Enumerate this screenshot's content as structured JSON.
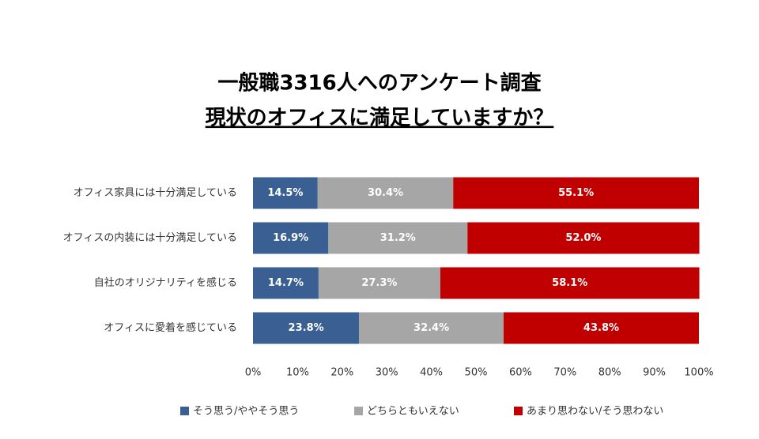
{
  "chart_data": {
    "type": "stacked-bar-horizontal",
    "title": "一般職3316人へのアンケート調査",
    "subtitle": "現状のオフィスに満足していますか？",
    "categories": [
      "オフィス家具には十分満足している",
      "オフィスの内装には十分満足している",
      "自社のオリジナリティを感じる",
      "オフィスに愛着を感じている"
    ],
    "series": [
      {
        "name": "そう思う/ややそう思う",
        "color": "#3a5f93",
        "values": [
          14.5,
          16.9,
          14.7,
          23.8
        ],
        "value_labels": [
          "14.5%",
          "16.9%",
          "14.7%",
          "23.8%"
        ]
      },
      {
        "name": "どちらともいえない",
        "color": "#a6a6a6",
        "values": [
          30.4,
          31.2,
          27.3,
          32.4
        ],
        "value_labels": [
          "30.4%",
          "31.2%",
          "27.3%",
          "32.4%"
        ]
      },
      {
        "name": "あまり思わない/そう思わない",
        "color": "#c00000",
        "values": [
          55.1,
          52.0,
          58.1,
          43.8
        ],
        "value_labels": [
          "55.1%",
          "52.0%",
          "58.1%",
          "43.8%"
        ]
      }
    ],
    "xlim": [
      0,
      100
    ],
    "xticks": [
      {
        "value": 0,
        "label": "0%"
      },
      {
        "value": 10,
        "label": "10%"
      },
      {
        "value": 20,
        "label": "20%"
      },
      {
        "value": 30,
        "label": "30%"
      },
      {
        "value": 40,
        "label": "40%"
      },
      {
        "value": 50,
        "label": "50%"
      },
      {
        "value": 60,
        "label": "60%"
      },
      {
        "value": 70,
        "label": "70%"
      },
      {
        "value": 80,
        "label": "80%"
      },
      {
        "value": 90,
        "label": "90%"
      },
      {
        "value": 100,
        "label": "100%"
      }
    ]
  }
}
